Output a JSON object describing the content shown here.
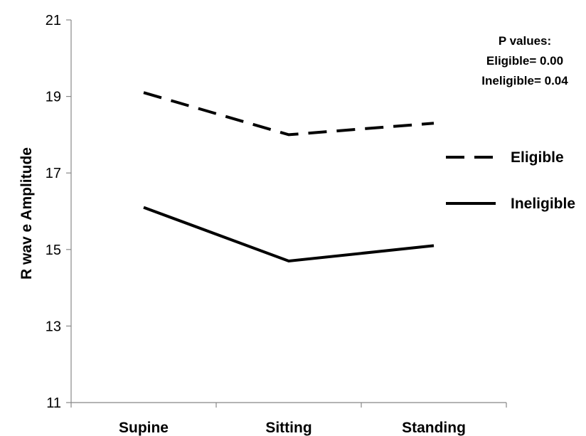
{
  "chart_data": {
    "type": "line",
    "title": "",
    "xlabel": "",
    "ylabel": "R wav e Amplitude",
    "categories": [
      "Supine",
      "Sitting",
      "Standing"
    ],
    "ylim": [
      11,
      21
    ],
    "yticks": [
      11,
      13,
      15,
      17,
      19,
      21
    ],
    "grid": false,
    "legend_position": "right",
    "series": [
      {
        "name": "Eligible",
        "values": [
          19.1,
          18.0,
          18.3
        ],
        "style": "dashed",
        "color": "#000000"
      },
      {
        "name": "Ineligible",
        "values": [
          16.1,
          14.7,
          15.1
        ],
        "style": "solid",
        "color": "#000000"
      }
    ],
    "annotation": [
      "P values:",
      "Eligible= 0.00",
      "Ineligible= 0.04"
    ]
  }
}
